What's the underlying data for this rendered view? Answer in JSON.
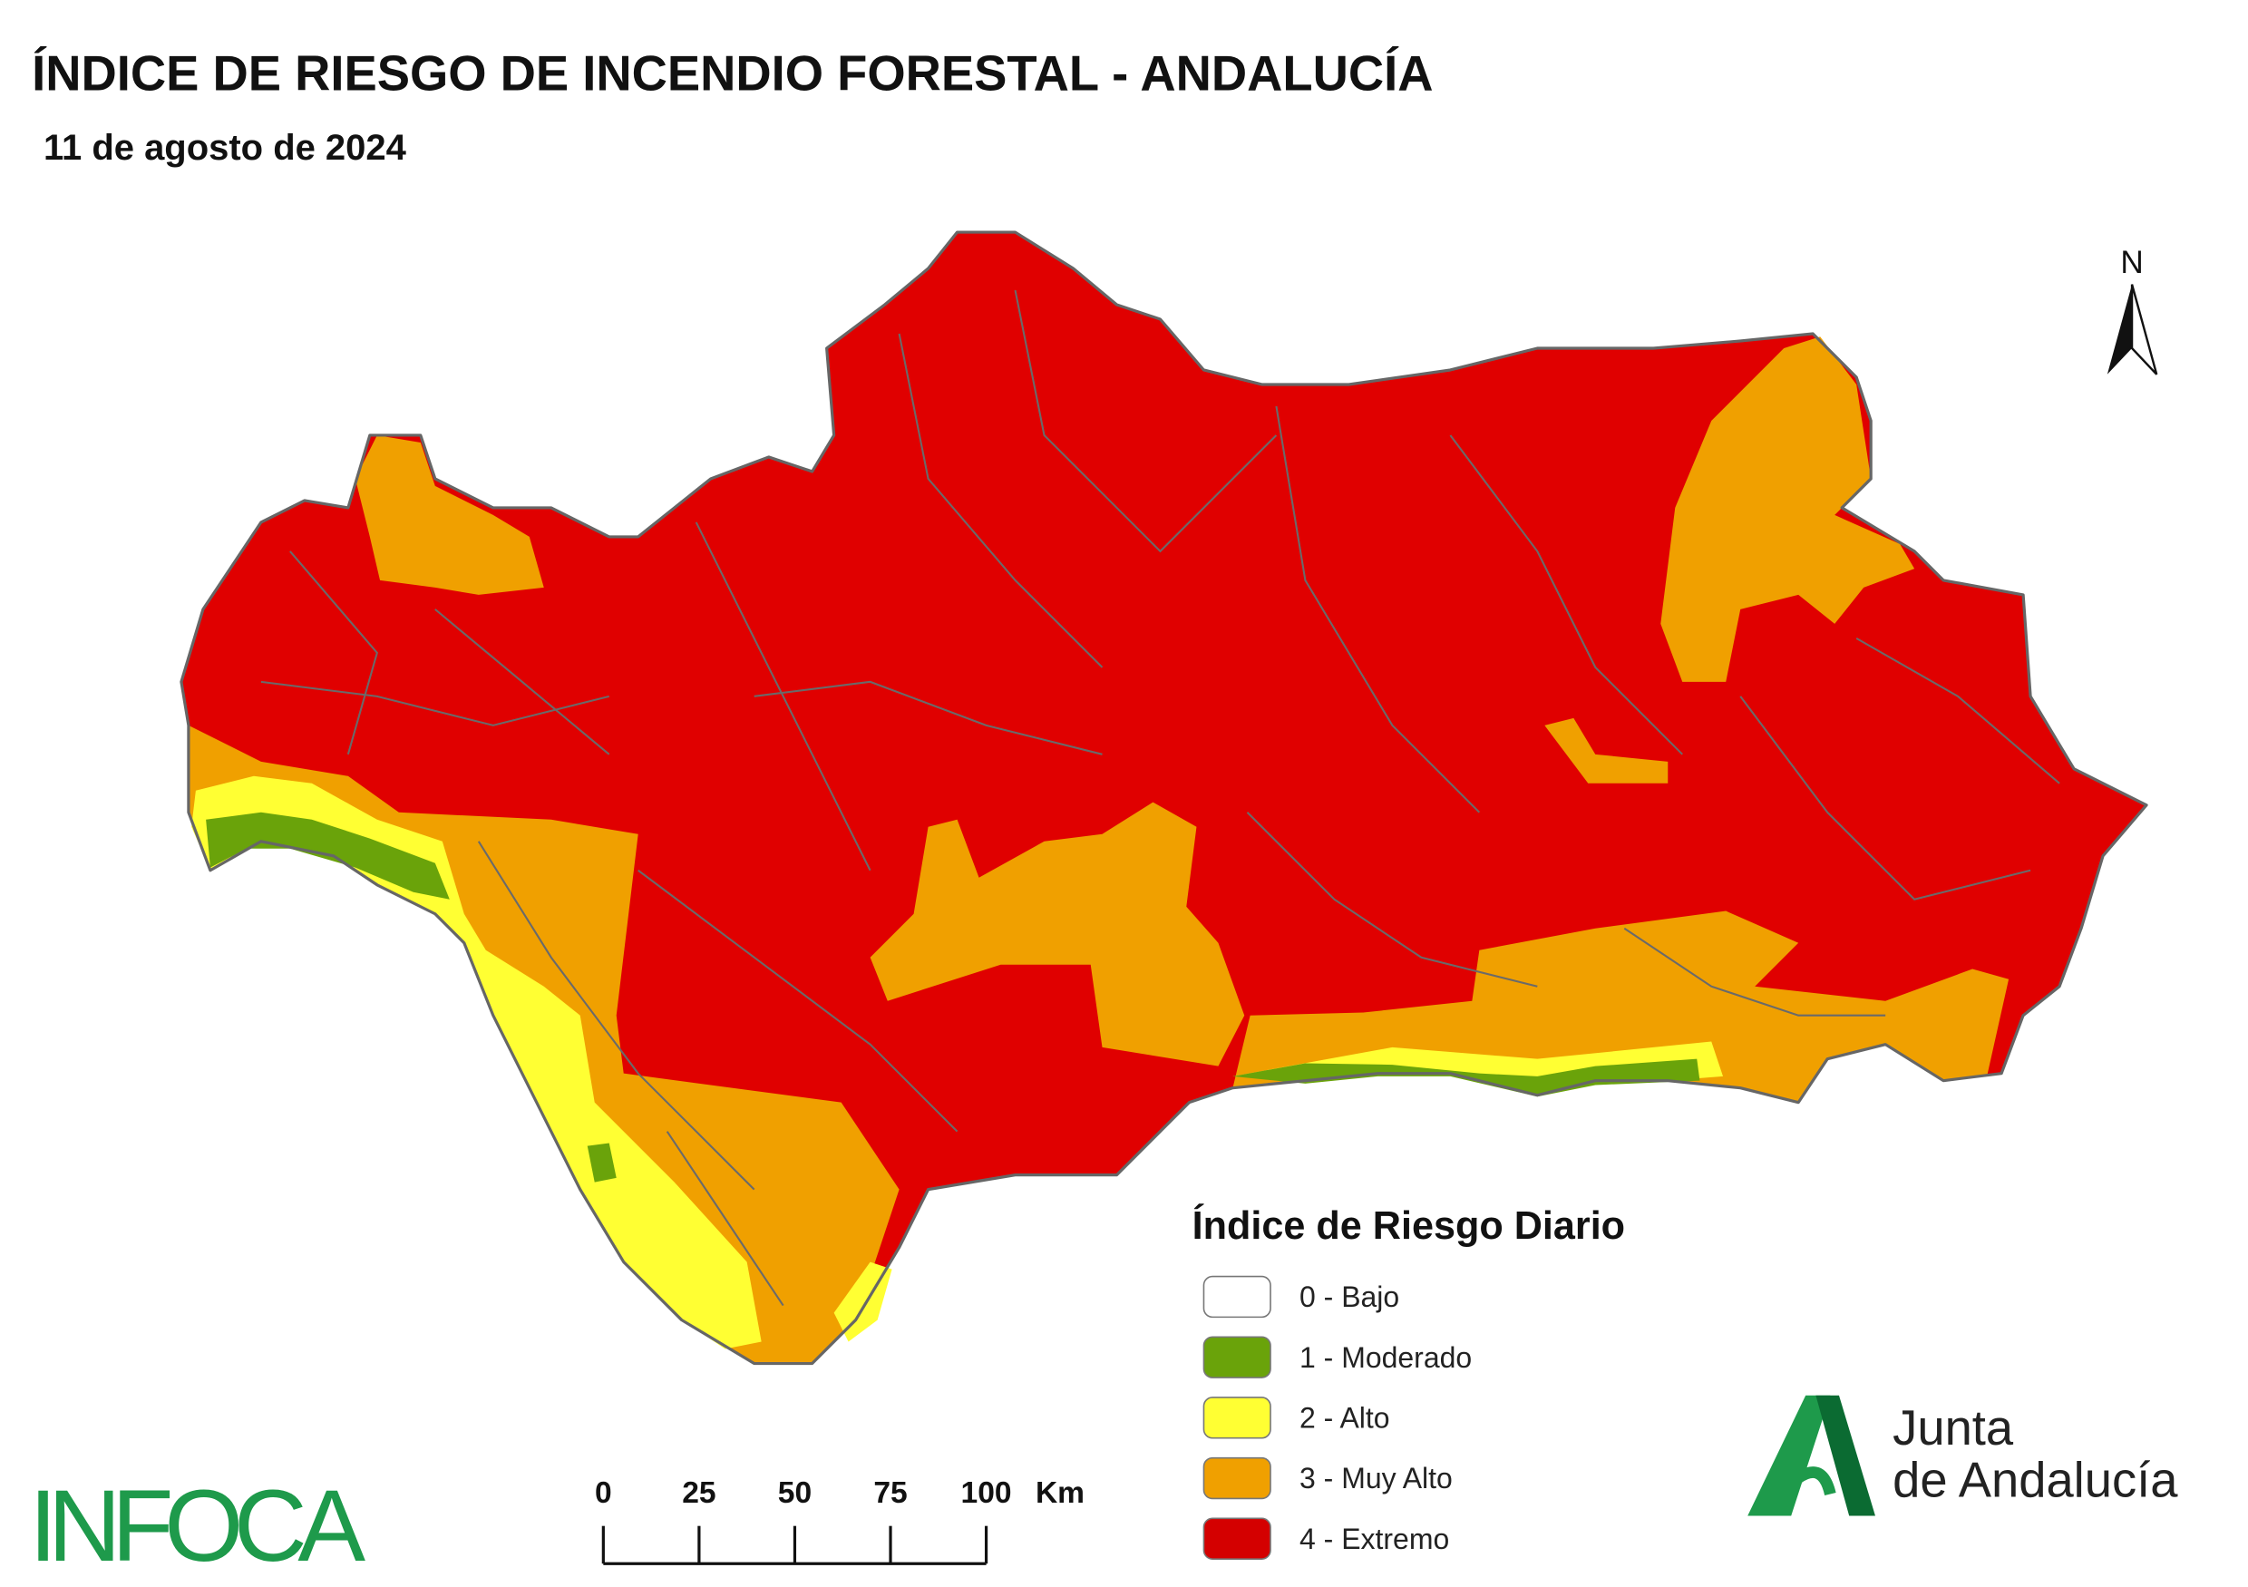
{
  "header": {
    "title": "ÍNDICE DE RIESGO DE INCENDIO FORESTAL - ANDALUCÍA",
    "date": "11 de agosto de 2024"
  },
  "map": {
    "north_label": "N"
  },
  "legend": {
    "title": "Índice de Riesgo Diario",
    "items": [
      {
        "label": "0 - Bajo",
        "color": "#ffffff"
      },
      {
        "label": "1 - Moderado",
        "color": "#6aa30a"
      },
      {
        "label": "2 - Alto",
        "color": "#ffff33"
      },
      {
        "label": "3 - Muy Alto",
        "color": "#f0a000"
      },
      {
        "label": "4 - Extremo",
        "color": "#d40000"
      }
    ]
  },
  "scale_bar": {
    "ticks": [
      0,
      25,
      50,
      75,
      100
    ],
    "unit": "Km"
  },
  "logos": {
    "infoca": "INFOCA",
    "junta_line1": "Junta",
    "junta_line2": "de Andalucía"
  }
}
